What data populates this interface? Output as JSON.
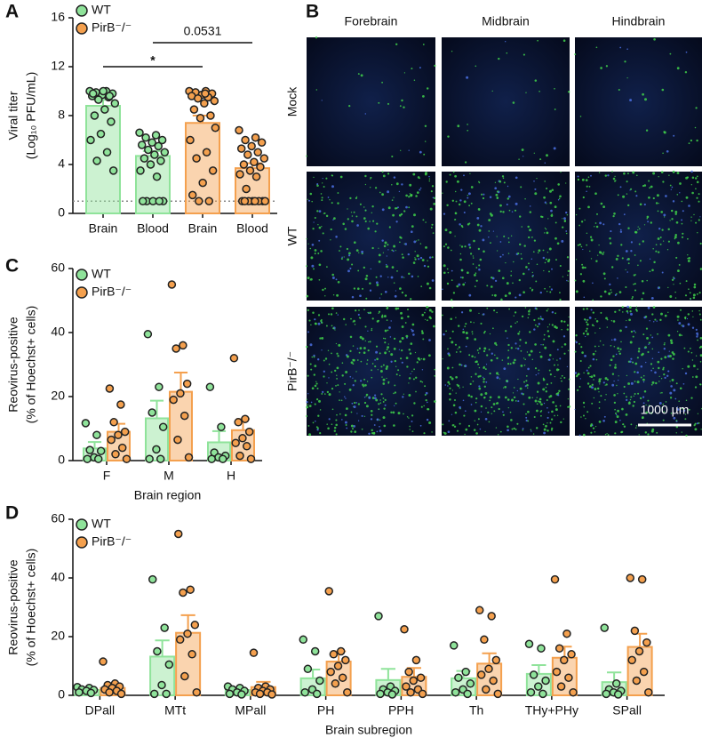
{
  "panel_labels": [
    "A",
    "B",
    "C",
    "D"
  ],
  "images": {
    "columns": [
      "Forebrain",
      "Midbrain",
      "Hindbrain"
    ],
    "rows": [
      "Mock",
      "WT",
      "PirB⁻/⁻"
    ],
    "scale_bar": "1000 µm"
  },
  "chart_data": [
    {
      "type": "bar",
      "ylabel": [
        "Viral titer",
        "(Log₁₀ PFU/mL)"
      ],
      "categories": [
        "Brain",
        "Blood",
        "Brain",
        "Blood"
      ],
      "series": [
        {
          "name": "WT",
          "color": "#8fe39a",
          "values": [
            8.8,
            4.7,
            null,
            null
          ],
          "errors": [
            0.5,
            0.4,
            null,
            null
          ],
          "points": [
            [
              10,
              10,
              9.9,
              9.8,
              9.7,
              9.6,
              9.5,
              9.3,
              9,
              8.5,
              8,
              7.5,
              6.5,
              6,
              5,
              4.3,
              3.5,
              10,
              9.8,
              9.6
            ],
            [
              6.6,
              6.4,
              6.2,
              6,
              5.8,
              5.6,
              5.5,
              5.2,
              5,
              4.8,
              4.5,
              4.3,
              4,
              3.5,
              3,
              1,
              1,
              1,
              1,
              1
            ],
            null,
            null
          ]
        },
        {
          "name": "PirB⁻/⁻",
          "color": "#f4a04e",
          "values": [
            null,
            null,
            7.4,
            3.7
          ],
          "errors": [
            null,
            null,
            0.6,
            0.4
          ],
          "points": [
            null,
            null,
            [
              10,
              10,
              9.9,
              9.8,
              9.7,
              9.6,
              9.5,
              9.4,
              9.2,
              9,
              8.5,
              8,
              7.8,
              6,
              5,
              4.5,
              3.5,
              2.5,
              1.5,
              1,
              1,
              7,
              9.8
            ],
            [
              6.8,
              6.2,
              6,
              5.8,
              5.5,
              5.3,
              5,
              4.8,
              4.5,
              4.2,
              4,
              3.8,
              3.5,
              3.2,
              3,
              2,
              1,
              1,
              1,
              1,
              1,
              1,
              1,
              1
            ]
          ]
        }
      ],
      "ylim": [
        0,
        16
      ],
      "yticks": [
        0,
        4,
        8,
        12,
        16
      ],
      "reference_line": 1,
      "annotations": [
        "*",
        "0.0531"
      ],
      "legend": "upper left"
    },
    {
      "type": "bar",
      "ylabel": [
        "Reovirus-positive",
        "(% of Hoechst+ cells)"
      ],
      "xlabel": "Brain region",
      "categories": [
        "F",
        "M",
        "H"
      ],
      "series": [
        {
          "name": "WT",
          "color": "#8fe39a",
          "values": [
            3.8,
            13.2,
            5.7
          ],
          "errors": [
            2,
            5.5,
            3.5
          ],
          "points": [
            [
              11.7,
              8,
              3.3,
              3,
              1,
              0.5,
              0.5
            ],
            [
              39.5,
              23,
              15,
              10.5,
              3.5,
              0.5,
              0.5
            ],
            [
              23,
              10.5,
              2.5,
              1.5,
              1,
              0.5,
              0.5
            ]
          ]
        },
        {
          "name": "PirB⁻/⁻",
          "color": "#f4a04e",
          "values": [
            9,
            21.5,
            9.5
          ],
          "errors": [
            2.5,
            6,
            3.5
          ],
          "points": [
            [
              22.5,
              17.5,
              12,
              9,
              8,
              6.5,
              4,
              2,
              0.5
            ],
            [
              55,
              36,
              35,
              24,
              21,
              19,
              14,
              6.5,
              1
            ],
            [
              32,
              13,
              12,
              9,
              7,
              5.5,
              4.5,
              1.5,
              0.5
            ]
          ]
        }
      ],
      "ylim": [
        0,
        60
      ],
      "yticks": [
        0,
        20,
        40,
        60
      ],
      "legend": "upper left"
    },
    {
      "type": "bar",
      "ylabel": [
        "Reovirus-positive",
        "(% of Hoechst+ cells)"
      ],
      "xlabel": "Brain subregion",
      "categories": [
        "DPall",
        "MTt",
        "MPall",
        "PH",
        "PPH",
        "Th",
        "THy+PHy",
        "SPall"
      ],
      "series": [
        {
          "name": "WT",
          "color": "#8fe39a",
          "values": [
            1.8,
            13.2,
            1.8,
            5.8,
            5.2,
            5.8,
            7.3,
            4.5
          ],
          "errors": [
            0.5,
            5.5,
            0.6,
            3,
            3.8,
            2.5,
            3,
            3.3
          ],
          "points": [
            [
              2.8,
              2.5,
              2,
              1.8,
              1.5,
              1,
              0.8
            ],
            [
              39.5,
              23,
              15,
              10.5,
              3.5,
              0.5,
              0.5
            ],
            [
              3,
              2.5,
              2,
              1.5,
              1,
              0.5,
              0.3
            ],
            [
              19,
              15,
              9,
              5,
              2,
              1,
              0.5
            ],
            [
              27,
              3,
              2,
              1.5,
              1,
              0.5,
              0.3
            ],
            [
              17,
              8,
              6,
              4,
              2,
              1,
              0.5
            ],
            [
              17.5,
              16,
              7,
              5,
              3,
              1,
              0.5
            ],
            [
              23,
              4,
              2,
              1.5,
              1,
              0.5,
              0.3
            ]
          ]
        },
        {
          "name": "PirB⁻/⁻",
          "color": "#f4a04e",
          "values": [
            2.5,
            21.3,
            2.8,
            11.5,
            6.3,
            10.8,
            12.8,
            16.5
          ],
          "errors": [
            1.3,
            6,
            1.8,
            3.5,
            3,
            3.5,
            3.8,
            4.5
          ],
          "points": [
            [
              11.5,
              4,
              3.5,
              3,
              2.5,
              2,
              1.5,
              1,
              0.5
            ],
            [
              55,
              36,
              35,
              24,
              21,
              19,
              14,
              6.5,
              1
            ],
            [
              14.5,
              3,
              2.5,
              2,
              1.5,
              1,
              1,
              0.5,
              0.3
            ],
            [
              35.5,
              15,
              14,
              12,
              10,
              8,
              6,
              4,
              1
            ],
            [
              22.5,
              12,
              8,
              6,
              5,
              3,
              2,
              1,
              0.5
            ],
            [
              29,
              27,
              19,
              12,
              9,
              7,
              5,
              2,
              0.5
            ],
            [
              39.5,
              21,
              16,
              14,
              12,
              8,
              6,
              3,
              1
            ],
            [
              40,
              39.5,
              22,
              18,
              15,
              12,
              8,
              5,
              1
            ]
          ]
        }
      ],
      "ylim": [
        0,
        60
      ],
      "yticks": [
        0,
        20,
        40,
        60
      ],
      "legend": "upper left"
    }
  ]
}
